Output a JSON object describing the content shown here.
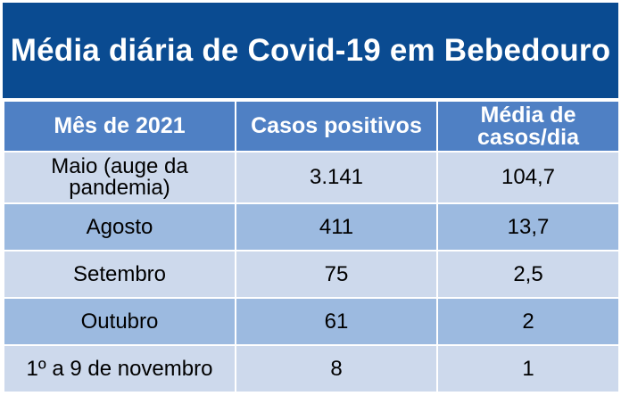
{
  "chart_data": {
    "type": "table",
    "title": "Média diária de Covid-19 em Bebedouro",
    "columns": [
      "Mês de 2021",
      "Casos positivos",
      "Média de casos/dia"
    ],
    "rows": [
      [
        "Maio (auge da pandemia)",
        "3.141",
        "104,7"
      ],
      [
        "Agosto",
        "411",
        "13,7"
      ],
      [
        "Setembro",
        "75",
        "2,5"
      ],
      [
        "Outubro",
        "61",
        "2"
      ],
      [
        "1º a 9 de novembro",
        "8",
        "1"
      ]
    ]
  },
  "colors": {
    "title_background": "#0a4b91",
    "header_background": "#4f80c4",
    "row_light": "#cdd9ec",
    "row_dark": "#9cbae0"
  }
}
